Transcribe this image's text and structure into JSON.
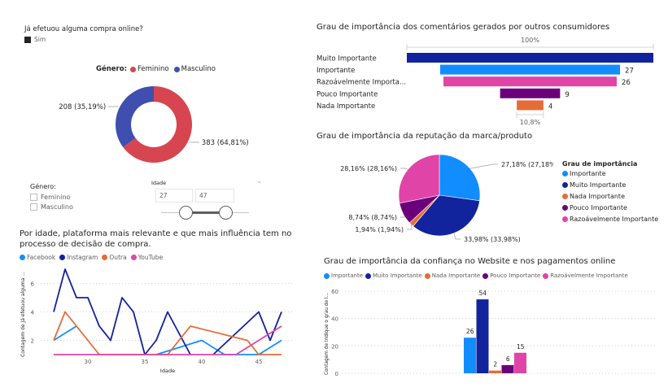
{
  "filter_card": {
    "title": "Já efetuou alguma compra online?",
    "legend_label": "Sim",
    "legend_color": "#252423"
  },
  "gender_donut": {
    "legend_title": "Género:",
    "chart_data": {
      "type": "pie",
      "subtype": "donut",
      "title": "",
      "legend_title": "Género:",
      "legend_position": "top",
      "slices": [
        {
          "label": "Feminino",
          "value": 383,
          "percent": 64.81,
          "data_label": "383 (64,81%)",
          "color": "#d64550"
        },
        {
          "label": "Masculino",
          "value": 208,
          "percent": 35.19,
          "data_label": "208 (35,19%)",
          "color": "#3f4faf"
        }
      ]
    }
  },
  "gender_slicer": {
    "title": "Género:",
    "options": [
      {
        "label": "Feminino",
        "checked": false
      },
      {
        "label": "Masculino",
        "checked": false
      }
    ]
  },
  "age_slicer": {
    "title": "Idade",
    "min_value": "27",
    "max_value": "47",
    "range_min": 27,
    "range_max": 47
  },
  "line_chart": {
    "chart_data": {
      "type": "line",
      "title": "Por idade, plataforma mais relevante e que mais influência tem no processo de decisão de compra.",
      "xlabel": "Idade",
      "ylabel": "Contagem de Já efetuou alguma ...",
      "xlim": [
        27,
        47
      ],
      "ylim": [
        1,
        7
      ],
      "xticks": [
        30,
        35,
        40,
        45
      ],
      "yticks": [
        2,
        4,
        6
      ],
      "grid": true,
      "legend_position": "top-left",
      "series": [
        {
          "name": "Facebook",
          "color": "#118dff",
          "segments": [
            [
              [
                27,
                2
              ],
              [
                29,
                3
              ]
            ],
            [
              [
                36,
                1
              ],
              [
                40,
                2
              ],
              [
                42,
                1
              ],
              [
                45,
                1
              ],
              [
                47,
                2
              ]
            ]
          ]
        },
        {
          "name": "Instagram",
          "color": "#12239e",
          "segments": [
            [
              [
                27,
                4
              ],
              [
                28,
                7
              ],
              [
                29,
                5
              ],
              [
                30,
                5
              ],
              [
                31,
                3
              ],
              [
                32,
                2
              ],
              [
                33,
                5
              ],
              [
                34,
                4
              ],
              [
                35,
                1
              ],
              [
                36,
                2
              ],
              [
                37,
                4
              ],
              [
                39,
                1
              ]
            ],
            [
              [
                41,
                1
              ],
              [
                45,
                4
              ],
              [
                46,
                2
              ],
              [
                47,
                4
              ]
            ]
          ]
        },
        {
          "name": "Outra",
          "color": "#e66c37",
          "segments": [
            [
              [
                27,
                2
              ],
              [
                28,
                4
              ],
              [
                31,
                1
              ],
              [
                37,
                1
              ],
              [
                39,
                3
              ],
              [
                44,
                2
              ],
              [
                45,
                1
              ],
              [
                47,
                1
              ]
            ]
          ]
        },
        {
          "name": "YouTube",
          "color": "#e044a7",
          "segments": [
            [
              [
                27,
                1
              ],
              [
                43,
                1
              ],
              [
                47,
                3
              ]
            ]
          ]
        }
      ]
    }
  },
  "funnel_chart": {
    "chart_data": {
      "type": "bar",
      "subtype": "funnel",
      "title": "Grau de importância dos comentários gerados por outros consumidores",
      "top_label": "100%",
      "bottom_label": "10,8%",
      "categories": [
        "Muito Importante",
        "Importante",
        "Razoávelmente Importa...",
        "Pouco Importante",
        "Nada Importante"
      ],
      "values": [
        37,
        27,
        26,
        9,
        4
      ],
      "data_labels": [
        "",
        "27",
        "26",
        "9",
        "4"
      ],
      "colors": [
        "#12239e",
        "#118dff",
        "#e044a7",
        "#6b007b",
        "#e66c37"
      ]
    }
  },
  "pie_chart": {
    "chart_data": {
      "type": "pie",
      "title": "Grau de importância da reputação da marca/produto",
      "legend_title": "Grau de importância",
      "legend_position": "right",
      "slices": [
        {
          "label": "Importante",
          "percent": 27.18,
          "data_label": "27,18% (27,18%)",
          "color": "#118dff"
        },
        {
          "label": "Muito Importante",
          "percent": 33.98,
          "data_label": "33,98% (33,98%)",
          "color": "#12239e"
        },
        {
          "label": "Nada Importante",
          "percent": 1.94,
          "data_label": "1,94% (1,94%)",
          "color": "#e66c37"
        },
        {
          "label": "Pouco Importante",
          "percent": 8.74,
          "data_label": "8,74% (8,74%)",
          "color": "#6b007b"
        },
        {
          "label": "Razoávelmente Importante",
          "percent": 28.16,
          "data_label": "28,16% (28,16%)",
          "color": "#e044a7"
        }
      ]
    }
  },
  "column_chart": {
    "chart_data": {
      "type": "bar",
      "title": "Grau de importância da confiança no Website e nos pagamentos online",
      "ylabel": "Contagem de Indique o grau de i...",
      "xlabel": "",
      "ylim": [
        0,
        60
      ],
      "yticks": [
        0,
        20,
        40,
        60
      ],
      "grid": true,
      "legend_position": "top-left",
      "series": [
        {
          "name": "Importante",
          "value": 26,
          "color": "#118dff"
        },
        {
          "name": "Muito Importante",
          "value": 54,
          "color": "#12239e"
        },
        {
          "name": "Nada Importante",
          "value": 2,
          "color": "#e66c37"
        },
        {
          "name": "Pouco Importante",
          "value": 6,
          "color": "#6b007b"
        },
        {
          "name": "Razoávelmente Importante",
          "value": 15,
          "color": "#e044a7"
        }
      ]
    }
  }
}
